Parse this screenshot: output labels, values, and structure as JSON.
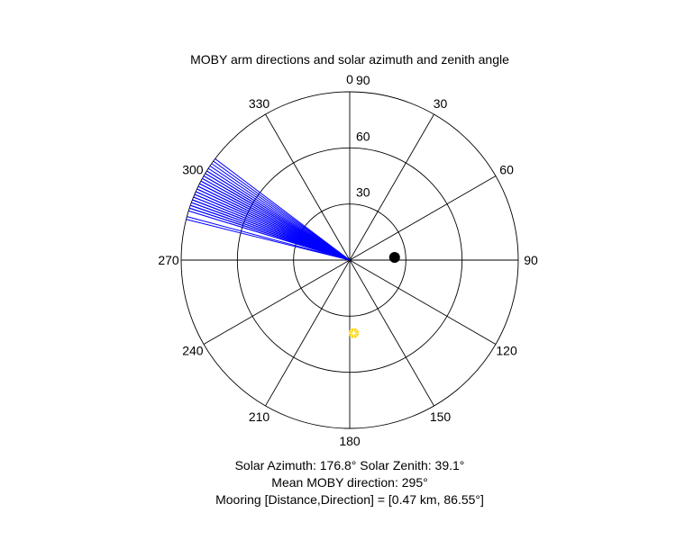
{
  "chart_data": {
    "type": "polar-scatter",
    "title": "MOBY arm directions and solar azimuth and zenith angle",
    "angle_ticks": [
      0,
      30,
      60,
      90,
      120,
      150,
      180,
      210,
      240,
      270,
      300,
      330
    ],
    "radial_ticks": [
      30,
      60,
      90
    ],
    "radial_lim": [
      0,
      90
    ],
    "angle_zero": "top",
    "angle_direction": "clockwise",
    "grid": true,
    "colors": {
      "moby_arms": "#0000ff",
      "solar": "#ffd200",
      "mooring": "#000000",
      "grid": "#000000"
    },
    "moby_arm_directions": [
      287,
      287,
      288,
      288,
      288,
      289,
      289,
      289,
      290,
      290,
      290,
      291,
      291,
      291,
      292,
      292,
      292,
      293,
      293,
      293,
      294,
      294,
      294,
      295,
      295,
      295,
      296,
      296,
      296,
      297,
      297,
      297,
      298,
      298,
      298,
      299,
      299,
      300,
      300,
      300,
      301,
      301,
      302,
      302,
      303,
      304,
      305,
      306,
      307,
      284,
      285
    ],
    "moby_arm_length": 90,
    "solar": {
      "azimuth": 176.8,
      "zenith": 39.1
    },
    "mooring": {
      "direction": 86.55,
      "radial": 24
    }
  },
  "captions": {
    "solar_line": "Solar Azimuth: 176.8°    Solar Zenith: 39.1°",
    "moby_line": "Mean MOBY direction: 295°",
    "mooring_line": "Mooring [Distance,Direction] = [0.47 km, 86.55°]"
  }
}
